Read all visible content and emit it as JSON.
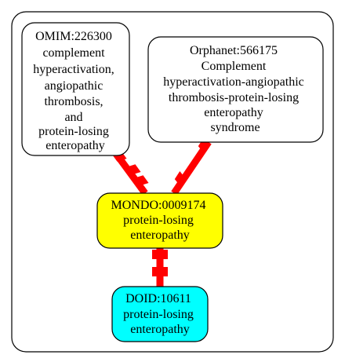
{
  "nodes": {
    "omim": {
      "lines": [
        "OMIM:226300",
        "complement",
        "hyperactivation,",
        "angiopathic",
        "thrombosis,",
        "and",
        "protein-losing",
        "enteropathy"
      ],
      "fill": "#ffffff"
    },
    "orphanet": {
      "lines": [
        "Orphanet:566175",
        "Complement",
        "hyperactivation-angiopathic",
        "thrombosis-protein-losing",
        "enteropathy",
        "syndrome"
      ],
      "fill": "#ffffff"
    },
    "mondo": {
      "lines": [
        "MONDO:0009174",
        "protein-losing",
        "enteropathy"
      ],
      "fill": "#ffff00"
    },
    "doid": {
      "lines": [
        "DOID:10611",
        "protein-losing",
        "enteropathy"
      ],
      "fill": "#00ffff"
    }
  },
  "colors": {
    "edge": "#ff0000",
    "stroke": "#000000",
    "background": "#ffffff"
  }
}
